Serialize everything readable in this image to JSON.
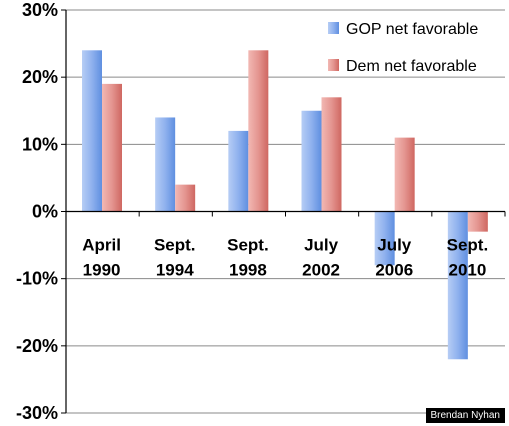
{
  "chart_data": {
    "type": "bar",
    "categories": [
      [
        "April",
        "1990"
      ],
      [
        "Sept.",
        "1994"
      ],
      [
        "Sept.",
        "1998"
      ],
      [
        "July",
        "2002"
      ],
      [
        "July",
        "2006"
      ],
      [
        "Sept.",
        "2010"
      ]
    ],
    "series": [
      {
        "name": "GOP net favorable",
        "values": [
          24,
          14,
          12,
          15,
          -8,
          -22
        ],
        "color": "#6d9ae6"
      },
      {
        "name": "Dem net favorable",
        "values": [
          19,
          4,
          24,
          17,
          11,
          -3
        ],
        "color": "#d9706b"
      }
    ],
    "y_ticks": [
      "-30%",
      "-20%",
      "-10%",
      "0%",
      "10%",
      "20%",
      "30%"
    ],
    "ylim": [
      -30,
      30
    ],
    "grid": true,
    "legend_position": "top-right"
  },
  "credit": "Brendan Nyhan"
}
